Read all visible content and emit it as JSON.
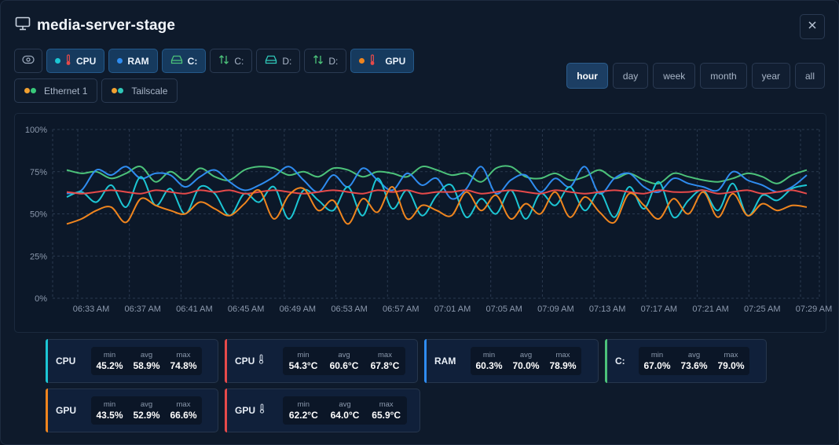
{
  "window": {
    "title": "media-server-stage",
    "title_icon": "monitor-icon",
    "close_icon": "close-icon"
  },
  "sensors": {
    "row1": [
      {
        "id": "visibility",
        "label": "",
        "icon": "eye-icon",
        "active": false
      },
      {
        "id": "cpu-temp",
        "label": "CPU",
        "icon": "thermometer-icon",
        "dots": [
          "#1cc6d4"
        ],
        "active": true
      },
      {
        "id": "ram",
        "label": "RAM",
        "dots": [
          "#2f8cf0"
        ],
        "active": true
      },
      {
        "id": "c-drive",
        "label": "C:",
        "icon": "drive-icon",
        "active": true
      },
      {
        "id": "c-io",
        "label": "C:",
        "icon": "updown-arrows-icon",
        "active": false
      },
      {
        "id": "d-drive",
        "label": "D:",
        "icon": "drive-icon",
        "active": false
      },
      {
        "id": "d-io",
        "label": "D:",
        "icon": "updown-arrows-icon",
        "active": false
      },
      {
        "id": "gpu",
        "label": "GPU",
        "icon": "thermometer-icon",
        "dots": [
          "#f0851e"
        ],
        "active": true
      }
    ],
    "row2": [
      {
        "id": "ethernet",
        "label": "Ethernet 1",
        "dots": [
          "#f0a030",
          "#39c97a"
        ],
        "active": false
      },
      {
        "id": "tailscale",
        "label": "Tailscale",
        "dots": [
          "#f0a030",
          "#2fc7b8"
        ],
        "active": false
      }
    ]
  },
  "time_ranges": [
    {
      "label": "hour",
      "active": true
    },
    {
      "label": "day",
      "active": false
    },
    {
      "label": "week",
      "active": false
    },
    {
      "label": "month",
      "active": false
    },
    {
      "label": "year",
      "active": false
    },
    {
      "label": "all",
      "active": false
    }
  ],
  "chart_data": {
    "type": "line",
    "title": "",
    "xlabel": "",
    "ylabel": "",
    "ylim": [
      0,
      100
    ],
    "yticks": [
      "0%",
      "25%",
      "50%",
      "75%",
      "100%"
    ],
    "x_ticks": [
      "06:33 AM",
      "06:37 AM",
      "06:41 AM",
      "06:45 AM",
      "06:49 AM",
      "06:53 AM",
      "06:57 AM",
      "07:01 AM",
      "07:05 AM",
      "07:09 AM",
      "07:13 AM",
      "07:17 AM",
      "07:21 AM",
      "07:25 AM",
      "07:29 AM"
    ],
    "grid": true,
    "series": [
      {
        "key": "c",
        "color": "#4cc27a",
        "values": [
          76,
          74,
          75,
          71,
          74,
          78,
          69,
          75,
          70,
          77,
          72,
          70,
          76,
          78,
          77,
          73,
          75,
          72,
          77,
          76,
          72,
          75,
          74,
          72,
          78,
          76,
          73,
          74,
          69,
          77,
          78,
          72,
          71,
          74,
          70,
          72,
          76,
          71,
          74,
          70,
          68,
          74,
          72,
          70,
          69,
          71,
          74,
          72,
          68,
          73,
          76
        ]
      },
      {
        "key": "ram",
        "color": "#2f8cf0",
        "values": [
          62,
          64,
          76,
          73,
          78,
          71,
          74,
          73,
          66,
          72,
          76,
          69,
          64,
          67,
          72,
          78,
          70,
          63,
          73,
          66,
          77,
          70,
          64,
          74,
          67,
          71,
          59,
          65,
          78,
          62,
          70,
          73,
          63,
          71,
          66,
          78,
          62,
          71,
          74,
          66,
          63,
          71,
          68,
          66,
          64,
          75,
          70,
          67,
          63,
          66,
          73
        ]
      },
      {
        "key": "cpu",
        "color": "#1cc6d4",
        "values": [
          60,
          63,
          57,
          67,
          54,
          72,
          55,
          65,
          50,
          66,
          62,
          49,
          62,
          57,
          66,
          47,
          64,
          58,
          52,
          66,
          49,
          71,
          53,
          64,
          49,
          61,
          67,
          48,
          59,
          50,
          64,
          47,
          62,
          55,
          66,
          52,
          63,
          48,
          66,
          53,
          69,
          48,
          58,
          64,
          52,
          68,
          49,
          61,
          58,
          65,
          67
        ]
      },
      {
        "key": "cpu-temp",
        "color": "#e64a4a",
        "values": [
          63,
          62,
          63,
          64,
          63,
          62,
          64,
          63,
          62,
          64,
          63,
          64,
          62,
          63,
          64,
          63,
          62,
          63,
          64,
          63,
          62,
          64,
          63,
          64,
          62,
          63,
          63,
          64,
          62,
          63,
          64,
          63,
          62,
          64,
          63,
          62,
          63,
          64,
          63,
          62,
          64,
          63,
          63,
          64,
          62,
          63,
          64,
          62,
          63,
          64,
          62
        ]
      },
      {
        "key": "gpu",
        "color": "#f0851e",
        "values": [
          44,
          47,
          52,
          54,
          45,
          59,
          55,
          52,
          50,
          57,
          53,
          49,
          56,
          64,
          47,
          61,
          65,
          52,
          58,
          44,
          59,
          51,
          66,
          47,
          55,
          52,
          49,
          63,
          52,
          61,
          47,
          56,
          50,
          63,
          48,
          60,
          51,
          45,
          62,
          55,
          47,
          59,
          50,
          63,
          48,
          62,
          49,
          56,
          52,
          55,
          54
        ]
      }
    ]
  },
  "stats": [
    {
      "label": "CPU",
      "has_temp": false,
      "accent": "#1cc6d4",
      "min_label": "min",
      "avg_label": "avg",
      "max_label": "max",
      "min": "45.2%",
      "avg": "58.9%",
      "max": "74.8%"
    },
    {
      "label": "CPU",
      "has_temp": true,
      "accent": "#e64a4a",
      "min_label": "min",
      "avg_label": "avg",
      "max_label": "max",
      "min": "54.3°C",
      "avg": "60.6°C",
      "max": "67.8°C"
    },
    {
      "label": "RAM",
      "has_temp": false,
      "accent": "#2f8cf0",
      "min_label": "min",
      "avg_label": "avg",
      "max_label": "max",
      "min": "60.3%",
      "avg": "70.0%",
      "max": "78.9%"
    },
    {
      "label": "C:",
      "has_temp": false,
      "accent": "#4cc27a",
      "min_label": "min",
      "avg_label": "avg",
      "max_label": "max",
      "min": "67.0%",
      "avg": "73.6%",
      "max": "79.0%"
    },
    {
      "label": "GPU",
      "has_temp": false,
      "accent": "#f0851e",
      "min_label": "min",
      "avg_label": "avg",
      "max_label": "max",
      "min": "43.5%",
      "avg": "52.9%",
      "max": "66.6%"
    },
    {
      "label": "GPU",
      "has_temp": true,
      "accent": "#e64a4a",
      "min_label": "min",
      "avg_label": "avg",
      "max_label": "max",
      "min": "62.2°C",
      "avg": "64.0°C",
      "max": "65.9°C"
    }
  ]
}
